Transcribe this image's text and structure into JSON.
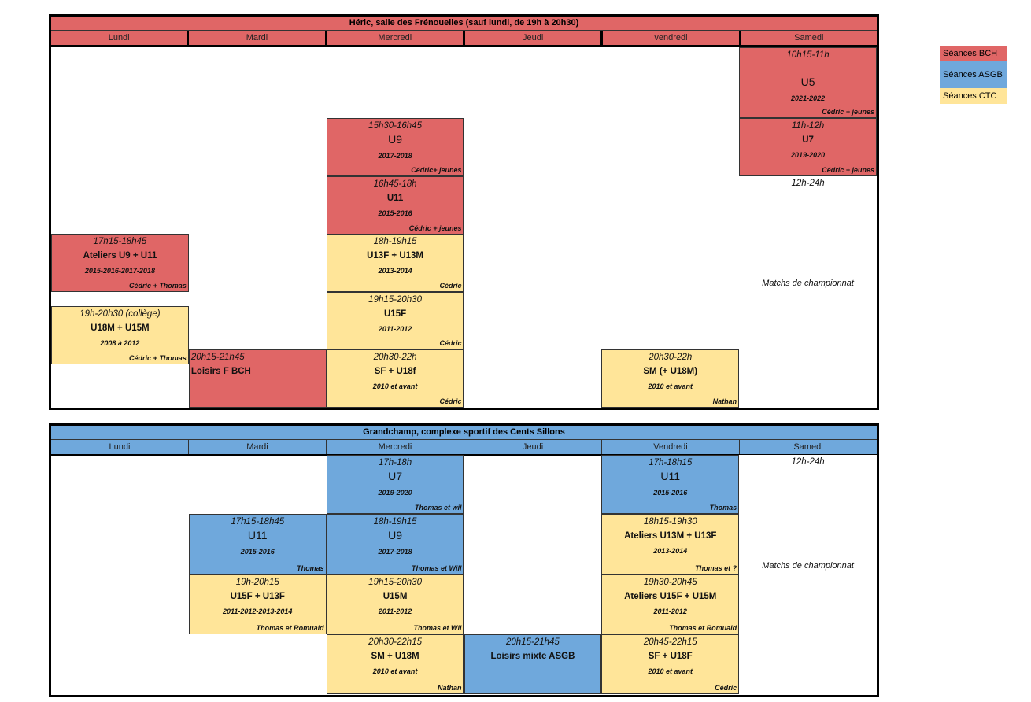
{
  "colors": {
    "bch": "#e06666",
    "asgb": "#6fa8dc",
    "ctc": "#ffe599"
  },
  "legend": [
    {
      "label": "Séances BCH",
      "type": "bch"
    },
    {
      "label": "Séances ASGB",
      "type": "asgb"
    },
    {
      "label": "Séances CTC",
      "type": "ctc"
    }
  ],
  "tables": [
    {
      "title": "Héric, salle des Frénouelles (sauf lundi, de 19h à 20h30)",
      "type": "bch",
      "days": [
        "Lundi",
        "Mardi",
        "Mercredi",
        "Jeudi",
        "vendredi",
        "Samedi"
      ],
      "cells": [
        {
          "day": 5,
          "type": "bch",
          "time": "10h15-11h",
          "name": "U5",
          "big": true,
          "years": "2021-2022",
          "coach": "Cédric + jeunes"
        },
        {
          "day": 5,
          "type": "bch",
          "time": "11h-12h",
          "name": "U7",
          "years": "2019-2020",
          "coach": "Cédric + jeunes"
        },
        {
          "day": 5,
          "type": "none",
          "time": "12h-24h",
          "note": "Matchs de championnat"
        },
        {
          "day": 2,
          "type": "bch",
          "time": "15h30-16h45",
          "name": "U9",
          "big": true,
          "years": "2017-2018",
          "coach": "Cédric+ jeunes"
        },
        {
          "day": 2,
          "type": "bch",
          "time": "16h45-18h",
          "name": "U11",
          "years": "2015-2016",
          "coach": "Cédric + jeunes"
        },
        {
          "day": 2,
          "type": "ctc",
          "time": "18h-19h15",
          "name": "U13F + U13M",
          "years": "2013-2014",
          "coach": "Cédric"
        },
        {
          "day": 2,
          "type": "ctc",
          "time": "19h15-20h30",
          "name": "U15F",
          "years": "2011-2012",
          "coach": "Cédric"
        },
        {
          "day": 2,
          "type": "ctc",
          "time": "20h30-22h",
          "name": "SF + U18f",
          "years": "2010 et avant",
          "coach": "Cédric"
        },
        {
          "day": 0,
          "type": "bch",
          "time": "17h15-18h45",
          "name": "Ateliers U9 + U11",
          "years": "2015-2016-2017-2018",
          "coach": "Cédric + Thomas"
        },
        {
          "day": 0,
          "type": "ctc",
          "time": "19h-20h30 (collège)",
          "name": "U18M + U15M",
          "years": "2008 à 2012",
          "coach": "Cédric + Thomas"
        },
        {
          "day": 1,
          "type": "bch",
          "time": "20h15-21h45",
          "name": "Loisirs F BCH",
          "left": true
        },
        {
          "day": 4,
          "type": "ctc",
          "time": "20h30-22h",
          "name": "SM (+ U18M)",
          "years": "2010 et avant",
          "coach": "Nathan"
        }
      ]
    },
    {
      "title": "Grandchamp, complexe sportif des Cents Sillons",
      "type": "asgb",
      "days": [
        "Lundi",
        "Mardi",
        "Mercredi",
        "Jeudi",
        "Vendredi",
        "Samedi"
      ],
      "cells": [
        {
          "day": 2,
          "type": "asgb",
          "time": "17h-18h",
          "name": "U7",
          "big": true,
          "years": "2019-2020",
          "coach": "Thomas et wil"
        },
        {
          "day": 2,
          "type": "asgb",
          "time": "18h-19h15",
          "name": "U9",
          "big": true,
          "years": "2017-2018",
          "coach": "Thomas et Will"
        },
        {
          "day": 2,
          "type": "ctc",
          "time": "19h15-20h30",
          "name": "U15M",
          "years": "2011-2012",
          "coach": "Thomas et Wil"
        },
        {
          "day": 2,
          "type": "ctc",
          "time": "20h30-22h15",
          "name": "SM + U18M",
          "years": "2010 et avant",
          "coach": "Nathan"
        },
        {
          "day": 1,
          "type": "asgb",
          "time": "17h15-18h45",
          "name": "U11",
          "big": true,
          "years": "2015-2016",
          "coach": "Thomas"
        },
        {
          "day": 1,
          "type": "ctc",
          "time": "19h-20h15",
          "name": "U15F + U13F",
          "years": "2011-2012-2013-2014",
          "coach": "Thomas et Romuald"
        },
        {
          "day": 3,
          "type": "asgb",
          "time": "20h15-21h45",
          "name": "Loisirs mixte ASGB"
        },
        {
          "day": 4,
          "type": "asgb",
          "time": "17h-18h15",
          "name": "U11",
          "big": true,
          "years": "2015-2016",
          "coach": "Thomas"
        },
        {
          "day": 4,
          "type": "ctc",
          "time": "18h15-19h30",
          "name": "Ateliers U13M + U13F",
          "years": "2013-2014",
          "coach": "Thomas et ?"
        },
        {
          "day": 4,
          "type": "ctc",
          "time": "19h30-20h45",
          "name": "Ateliers U15F + U15M",
          "years": "2011-2012",
          "coach": "Thomas et Romuald"
        },
        {
          "day": 4,
          "type": "ctc",
          "time": "20h45-22h15",
          "name": "SF + U18F",
          "years": "2010 et avant",
          "coach": "Cédric"
        },
        {
          "day": 5,
          "type": "none",
          "time": "12h-24h",
          "note": "Matchs de championnat"
        }
      ]
    }
  ]
}
